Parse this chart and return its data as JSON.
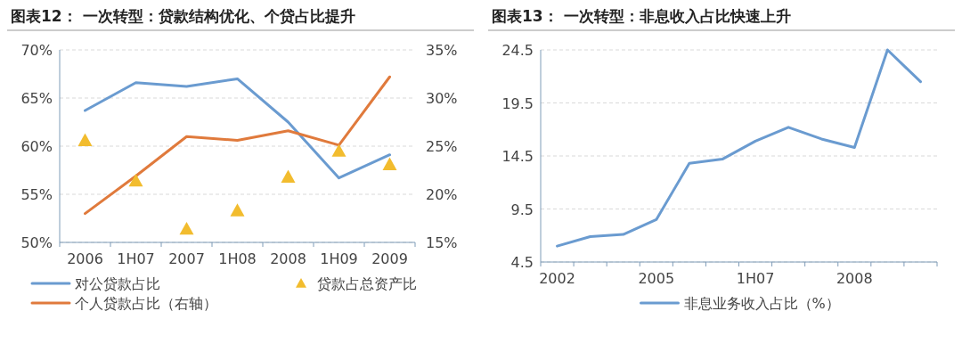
{
  "chart_data": [
    {
      "type": "line",
      "title": "图表12：  一次转型：贷款结构优化、个贷占比提升",
      "categories": [
        "2006",
        "1H07",
        "2007",
        "1H08",
        "2008",
        "1H09",
        "2009"
      ],
      "series": [
        {
          "name": "对公贷款占比",
          "color": "#6a9bd0",
          "values": [
            63.7,
            66.6,
            66.2,
            67.0,
            62.5,
            56.7,
            59.1
          ]
        },
        {
          "name": "贷款占总资产比",
          "type": "scatter",
          "marker": "triangle",
          "color": "#f2bc2e",
          "values": [
            60.6,
            56.4,
            51.4,
            53.3,
            56.8,
            59.5,
            58.1
          ]
        },
        {
          "name": "个人贷款占比（右轴）",
          "color": "#e07a3c",
          "axis": "y2",
          "values": [
            18.0,
            21.9,
            26.0,
            25.6,
            26.6,
            25.1,
            32.2
          ]
        }
      ],
      "ylim": [
        50,
        70
      ],
      "yticks": [
        {
          "value": 50,
          "label": "50%"
        },
        {
          "value": 55,
          "label": "55%"
        },
        {
          "value": 60,
          "label": "60%"
        },
        {
          "value": 65,
          "label": "65%"
        },
        {
          "value": 70,
          "label": "70%"
        }
      ],
      "y2lim": [
        15,
        35
      ],
      "y2ticks": [
        {
          "value": 15,
          "label": "15%"
        },
        {
          "value": 20,
          "label": "20%"
        },
        {
          "value": 25,
          "label": "25%"
        },
        {
          "value": 30,
          "label": "30%"
        },
        {
          "value": 35,
          "label": "35%"
        }
      ],
      "grid": "y",
      "legend": "bottom",
      "line_style": "solid"
    },
    {
      "type": "line",
      "title": "图表13：  一次转型：非息收入占比快速上升",
      "categories": [
        "2002",
        null,
        null,
        "2005",
        null,
        null,
        "1H07",
        null,
        null,
        "2008",
        null,
        null
      ],
      "series": [
        {
          "name": "非息业务收入占比（%）",
          "color": "#6a9bd0",
          "values": [
            6.0,
            6.9,
            7.1,
            8.5,
            13.8,
            14.2,
            15.9,
            17.2,
            16.1,
            15.3,
            24.5,
            21.5
          ]
        }
      ],
      "ylim": [
        4.5,
        24.5
      ],
      "yticks": [
        4.5,
        9.5,
        14.5,
        19.5,
        24.5
      ],
      "grid": "y",
      "legend": "bottom",
      "line_style": "solid"
    }
  ]
}
